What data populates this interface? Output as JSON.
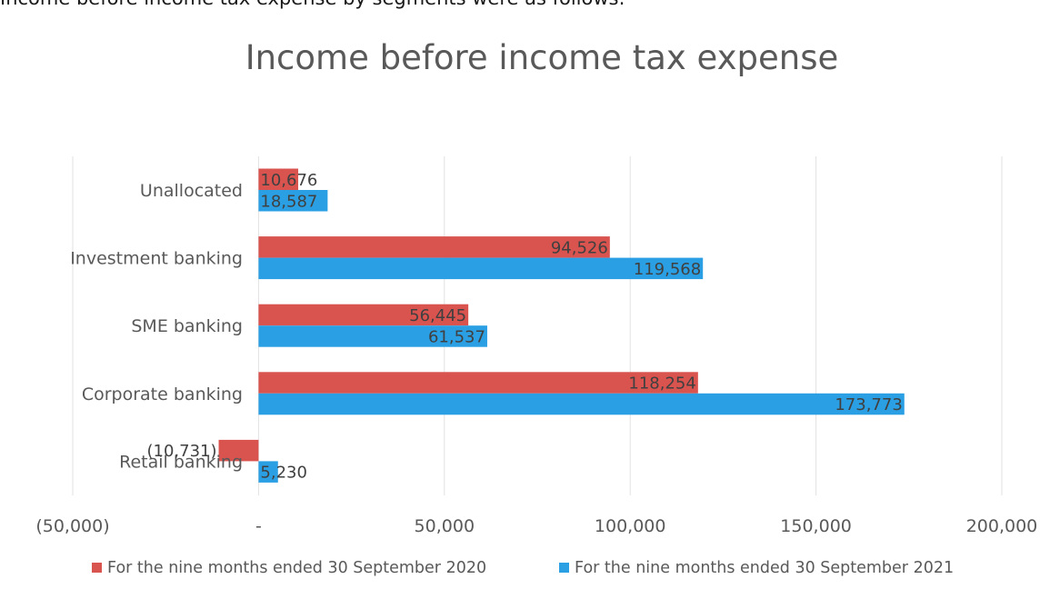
{
  "intro_text": "Income before income tax expense by segments were as follows:",
  "chart_data": {
    "type": "bar",
    "orientation": "horizontal",
    "title": "Income before income tax expense",
    "categories": [
      "Unallocated",
      "Investment banking",
      "SME banking",
      "Corporate banking",
      "Retail banking"
    ],
    "series": [
      {
        "name": "For the nine months ended 30 September 2020",
        "color": "#d9534f",
        "values": [
          10676,
          94526,
          56445,
          118254,
          -10731
        ],
        "labels": [
          "10,676",
          "94,526",
          "56,445",
          "118,254",
          "(10,731)"
        ]
      },
      {
        "name": "For the nine months ended 30 September 2021",
        "color": "#2b9fe3",
        "values": [
          18587,
          119568,
          61537,
          173773,
          5230
        ],
        "labels": [
          "18,587",
          "119,568",
          "61,537",
          "173,773",
          "5,230"
        ]
      }
    ],
    "xlim": [
      -50000,
      200000
    ],
    "xticks": [
      -50000,
      0,
      50000,
      100000,
      150000,
      200000
    ],
    "xtick_labels": [
      "(50,000)",
      "-",
      "50,000",
      "100,000",
      "150,000",
      "200,000"
    ],
    "grid": true,
    "legend_position": "bottom"
  }
}
